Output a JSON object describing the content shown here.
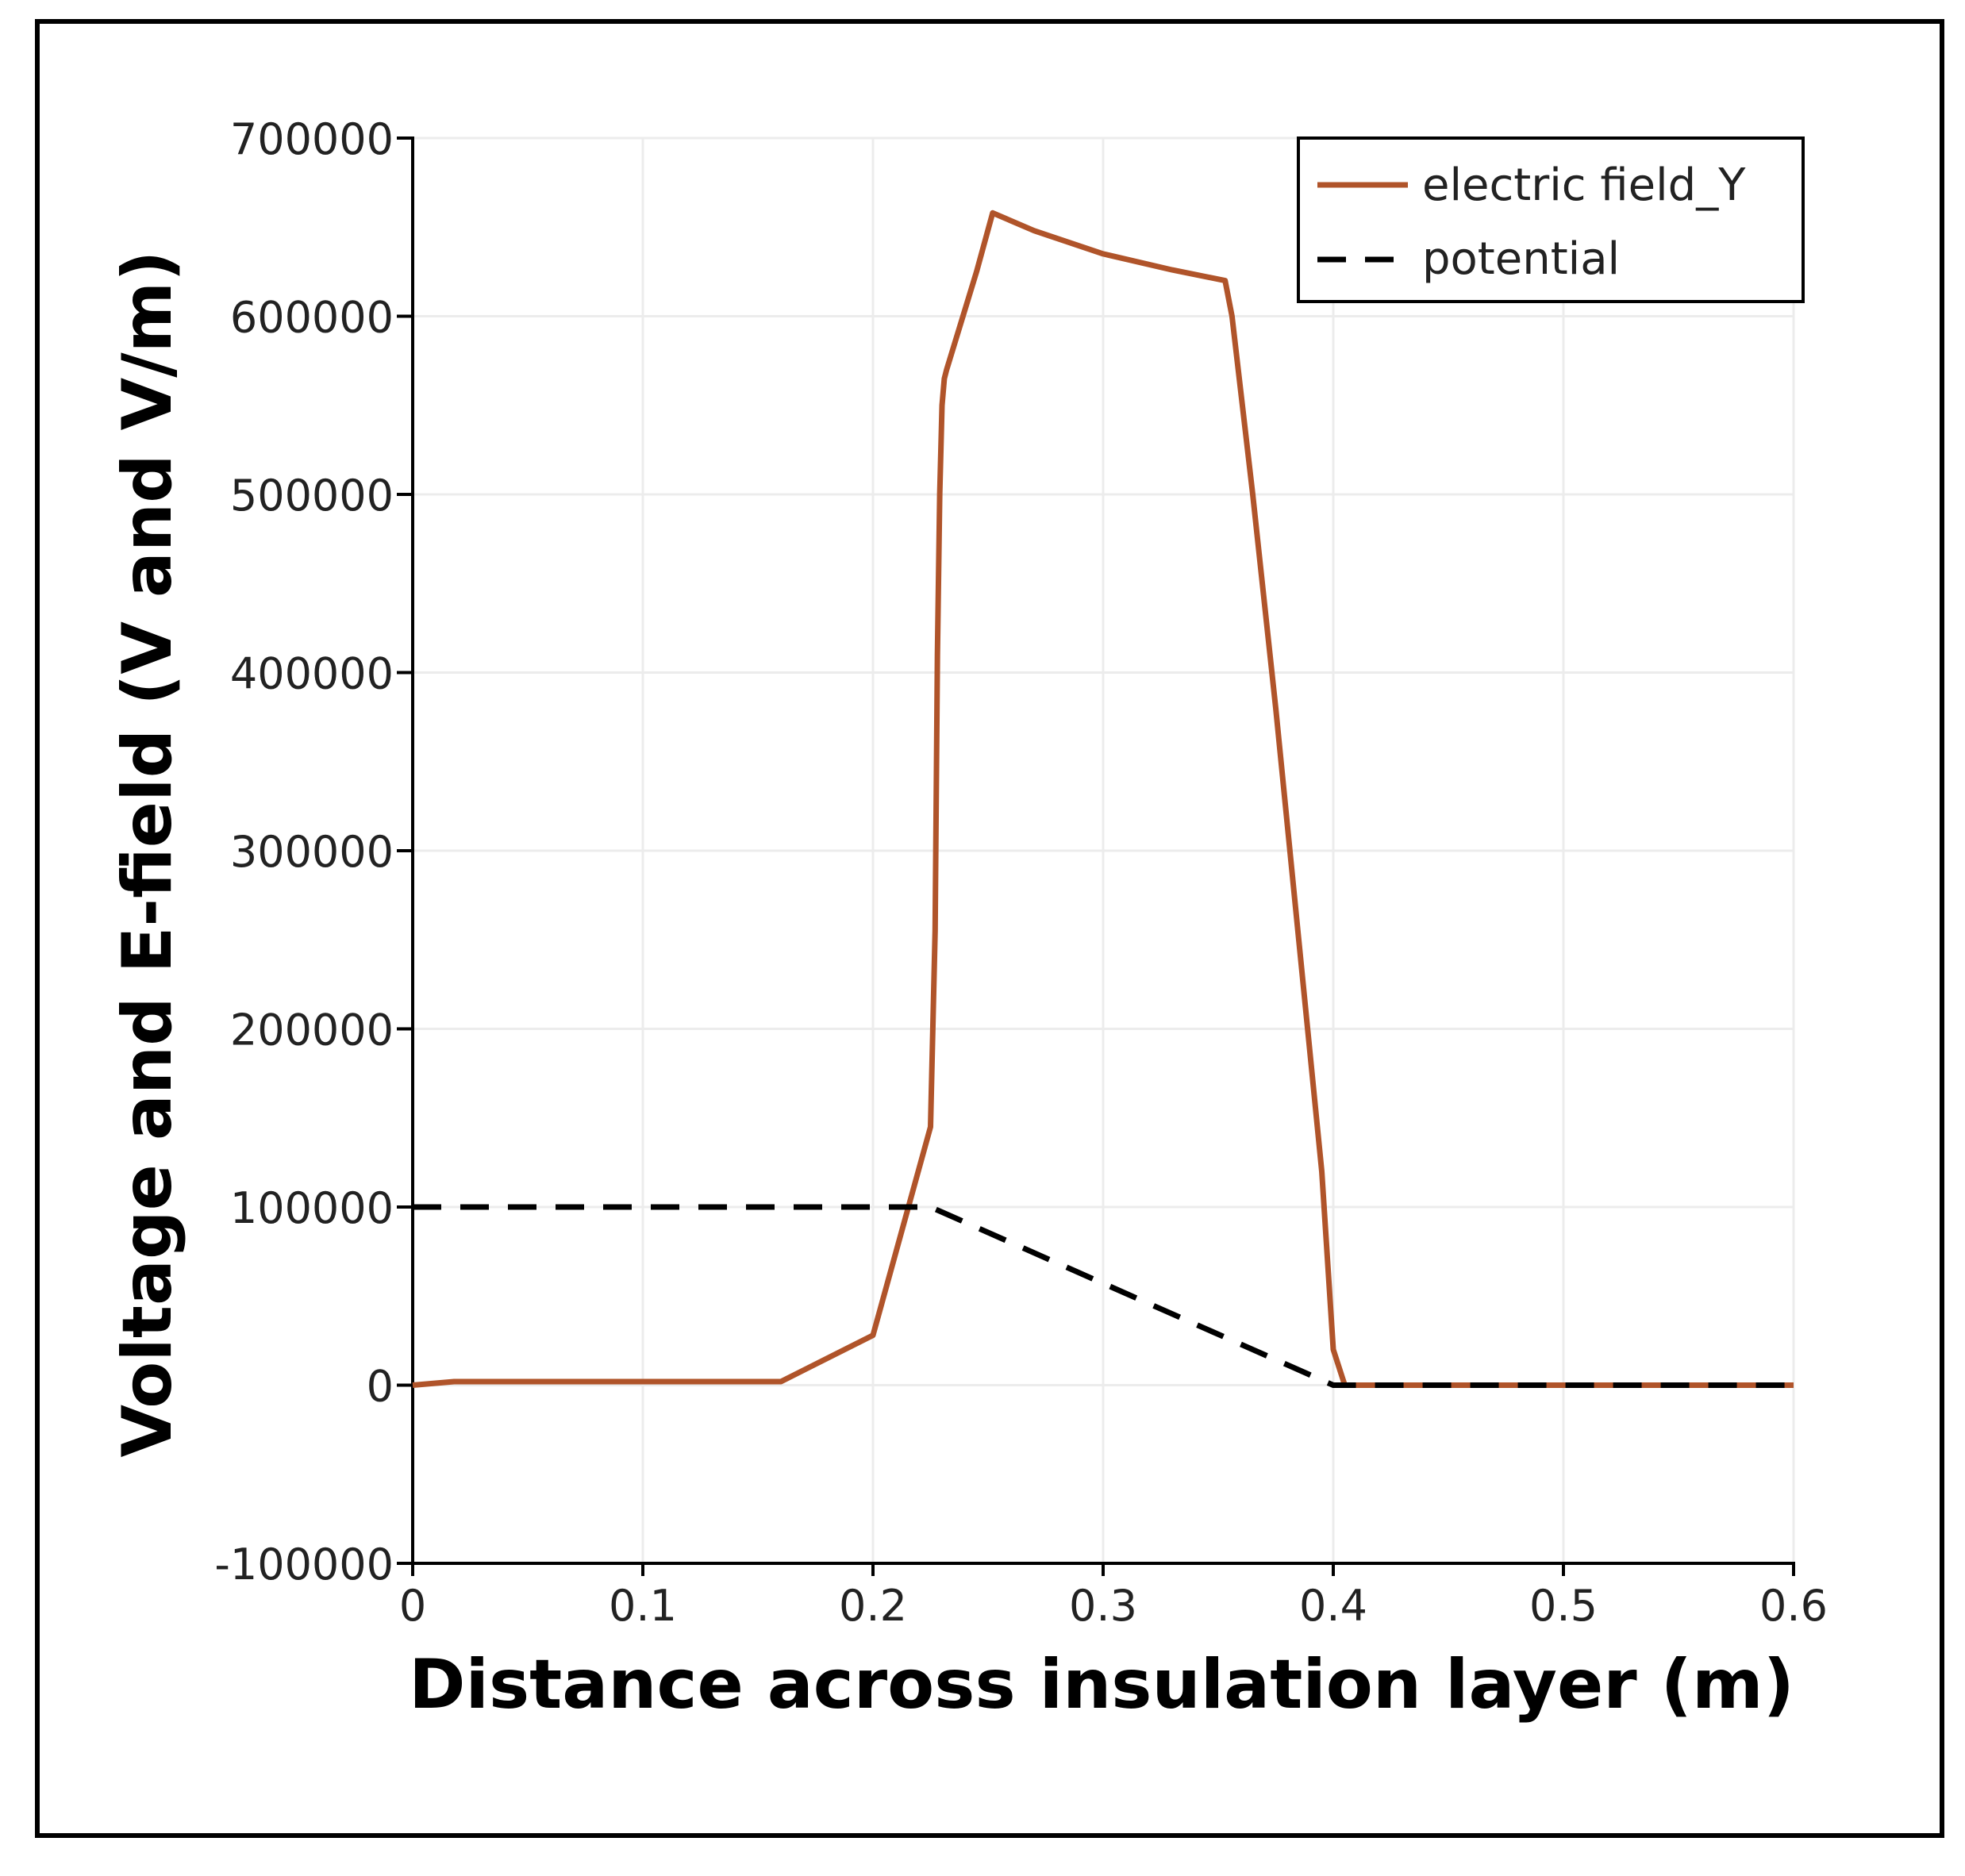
{
  "chart_data": {
    "type": "line",
    "title": "",
    "xlabel": "Distance across insulation layer (m)",
    "ylabel": "Voltage and E-field (V and V/m)",
    "xlim": [
      0,
      0.6
    ],
    "ylim": [
      -100000,
      700000
    ],
    "grid": true,
    "legend_position": "top-right",
    "x_ticks": [
      0,
      0.1,
      0.2,
      0.3,
      0.4,
      0.5,
      0.6
    ],
    "x_tick_labels": [
      "0",
      "0.1",
      "0.2",
      "0.3",
      "0.4",
      "0.5",
      "0.6"
    ],
    "y_ticks": [
      -100000,
      0,
      100000,
      200000,
      300000,
      400000,
      500000,
      600000,
      700000
    ],
    "y_tick_labels": [
      "-100000",
      "0",
      "100000",
      "200000",
      "300000",
      "400000",
      "500000",
      "600000",
      "700000"
    ],
    "series": [
      {
        "name": "electric field_Y",
        "color": "#b0542a",
        "dash": "solid",
        "x": [
          0,
          0.018,
          0.16,
          0.2,
          0.225,
          0.227,
          0.228,
          0.229,
          0.23,
          0.231,
          0.232,
          0.245,
          0.252,
          0.27,
          0.3,
          0.33,
          0.353,
          0.356,
          0.365,
          0.375,
          0.385,
          0.395,
          0.4,
          0.405,
          0.45,
          0.5,
          0.55,
          0.6
        ],
        "y": [
          0,
          2000,
          2000,
          28000,
          145000,
          255000,
          410000,
          500000,
          550000,
          565000,
          570000,
          625000,
          658000,
          648000,
          635000,
          626000,
          620000,
          600000,
          500000,
          380000,
          250000,
          120000,
          20000,
          0,
          0,
          0,
          0,
          0
        ]
      },
      {
        "name": "potential",
        "color": "#000000",
        "dash": "dashed",
        "x": [
          0,
          0.215,
          0.225,
          0.4,
          0.45,
          0.5,
          0.55,
          0.6
        ],
        "y": [
          100000,
          100000,
          100000,
          0,
          0,
          0,
          0,
          0
        ]
      }
    ]
  }
}
